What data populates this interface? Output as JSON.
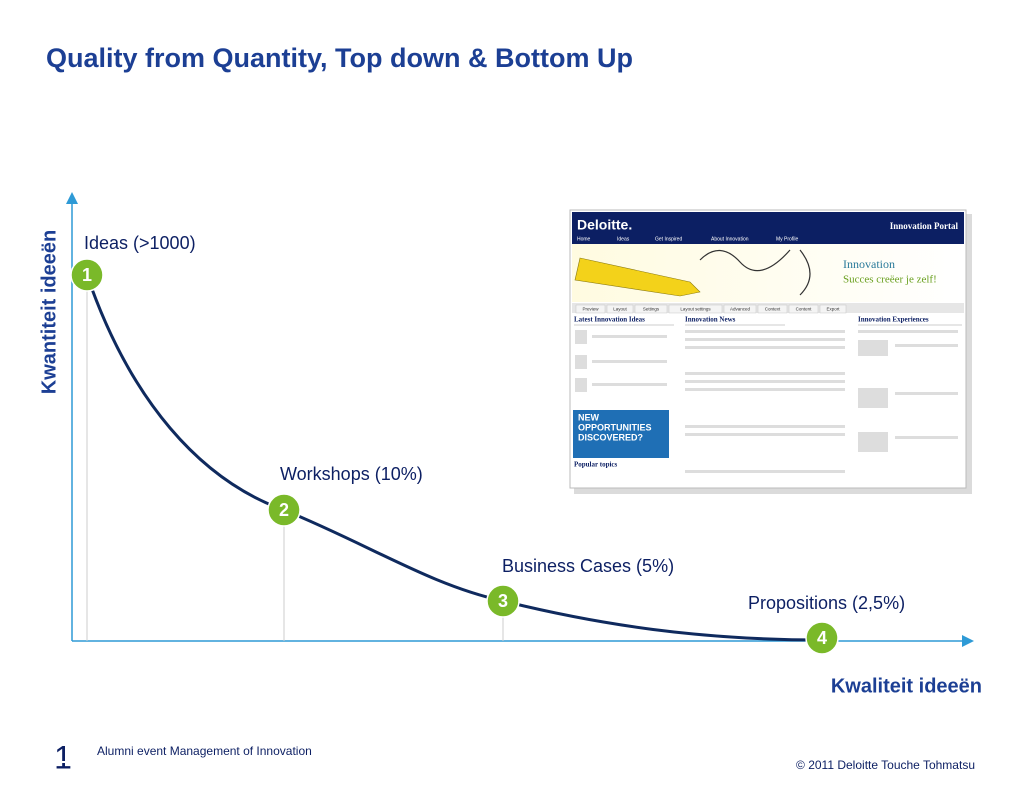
{
  "title": "Quality from Quantity,  Top down & Bottom Up",
  "axes": {
    "y_label": "Kwantiteit ideeën",
    "x_label": "Kwaliteit ideeën"
  },
  "stages": [
    {
      "number": "1",
      "label": "Ideas (>1000)"
    },
    {
      "number": "2",
      "label": "Workshops (10%)"
    },
    {
      "number": "3",
      "label": "Business Cases (5%)"
    },
    {
      "number": "4",
      "label": "Propositions (2,5%)"
    }
  ],
  "screenshot": {
    "brand": "Deloitte.",
    "portal": "Innovation Portal",
    "menu": [
      "Home",
      "Ideas",
      "Get Inspired",
      "About Innovation",
      "My Profile"
    ],
    "banner_title": "Innovation",
    "banner_subtitle": "Succes creëer je zelf!",
    "tabs": [
      "Preview",
      "Layout",
      "Settings",
      "Layout settings",
      "Advanced",
      "Context",
      "Content",
      "Export"
    ],
    "headings": [
      "Latest Innovation Ideas",
      "Innovation News",
      "Innovation Experiences"
    ],
    "promo": [
      "NEW",
      "OPPORTUNITIES",
      "DISCOVERED?"
    ],
    "popular": "Popular topics"
  },
  "footer": {
    "page": "1",
    "event": "Alumni event Management of Innovation",
    "copyright": "© 2011 Deloitte Touche Tohmatsu"
  }
}
